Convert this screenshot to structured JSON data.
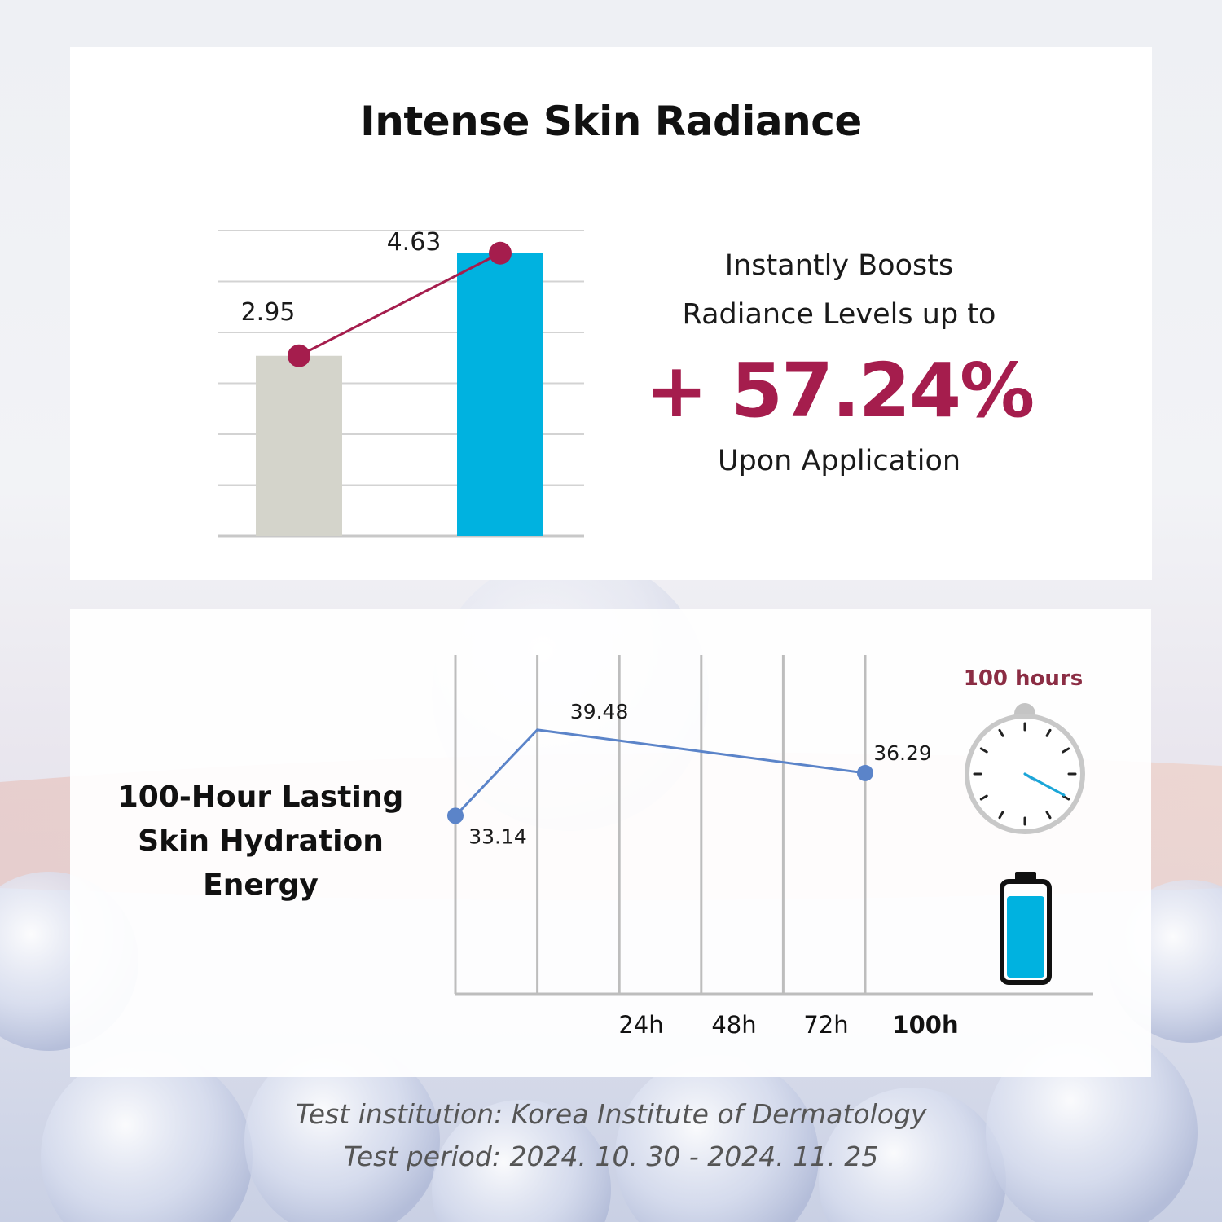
{
  "colors": {
    "accent": "#a51d4d",
    "bar_before": "#d4d4cb",
    "bar_after": "#00b2e0",
    "line_hydration": "#5b84c9",
    "grid": "#d3d3d3"
  },
  "radiance": {
    "title": "Intense Skin Radiance",
    "callout_line1": "Instantly Boosts",
    "callout_line2": "Radiance Levels up to",
    "callout_big": "+ 57.24%",
    "callout_line3": "Upon Application"
  },
  "hydration": {
    "title_lines": [
      "100-Hour Lasting",
      "Skin Hydration",
      "Energy"
    ],
    "hours_label": "100 hours",
    "icons": [
      "stopwatch-icon",
      "battery-icon"
    ]
  },
  "footer": {
    "line1": "Test institution: Korea Institute of Dermatology",
    "line2": "Test period: 2024. 10. 30 - 2024. 11. 25"
  },
  "chart_data": [
    {
      "type": "bar",
      "title": "Intense Skin Radiance",
      "categories": [
        "",
        ""
      ],
      "values": [
        2.95,
        4.63
      ],
      "data_labels": [
        "2.95",
        "4.63"
      ],
      "overlay_line": true,
      "ylim": [
        0,
        5
      ],
      "grid": true,
      "xlabel": "",
      "ylabel": ""
    },
    {
      "type": "line",
      "title": "100-Hour Lasting Skin Hydration Energy",
      "x_positions": [
        0,
        1,
        5
      ],
      "values": [
        33.14,
        39.48,
        36.29
      ],
      "data_labels": [
        "33.14",
        "39.48",
        "36.29"
      ],
      "tick_labels": [
        "24h",
        "48h",
        "72h",
        "100h"
      ],
      "bold_tick": "100h",
      "ylim": [
        20,
        45
      ],
      "grid": true,
      "xlabel": "",
      "ylabel": ""
    }
  ]
}
